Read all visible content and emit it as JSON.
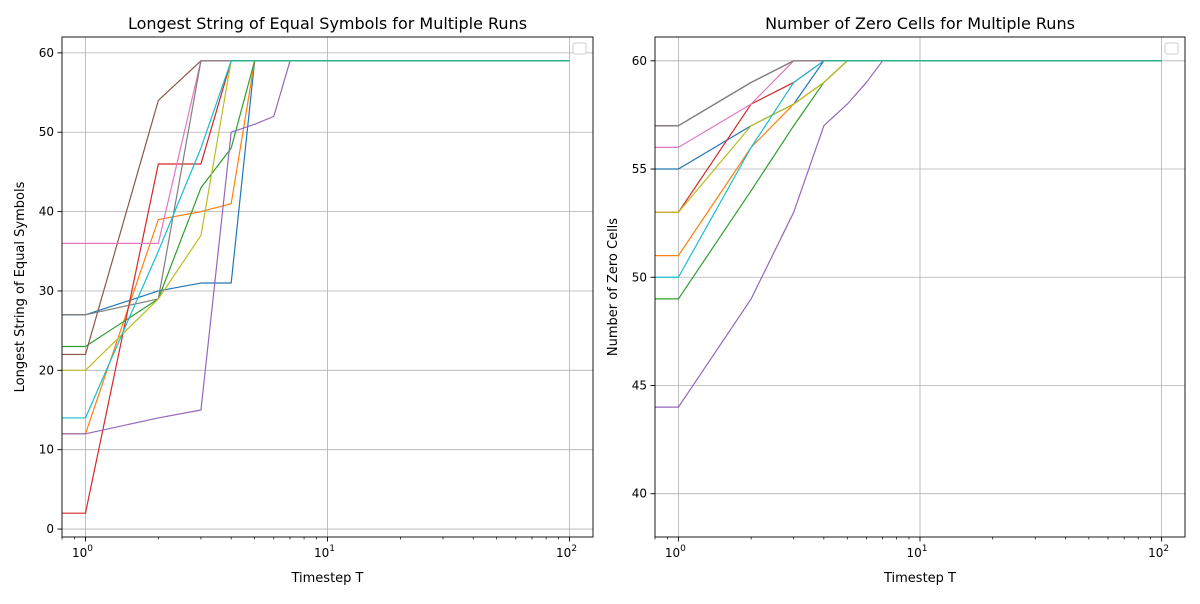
{
  "chart_data": [
    {
      "type": "line",
      "title": "Longest String of Equal Symbols for Multiple Runs",
      "xlabel": "Timestep T",
      "ylabel": "Longest String of Equal Symbols",
      "xscale": "log",
      "xlim": [
        0.8,
        125
      ],
      "ylim": [
        -1,
        62
      ],
      "xticks": [
        {
          "value": 1,
          "base": "10",
          "exp": "0"
        },
        {
          "value": 10,
          "base": "10",
          "exp": "1"
        },
        {
          "value": 100,
          "base": "10",
          "exp": "2"
        }
      ],
      "yticks": [
        0,
        10,
        20,
        30,
        40,
        50,
        60
      ],
      "grid": true,
      "legend": "top-right (empty box)",
      "series": [
        {
          "color": "#1f77b4",
          "x": [
            0.8,
            1,
            2,
            3,
            4,
            5,
            100
          ],
          "y": [
            27,
            27,
            30,
            31,
            31,
            59,
            59
          ]
        },
        {
          "color": "#ff7f0e",
          "x": [
            0.8,
            1,
            2,
            3,
            4,
            5,
            100
          ],
          "y": [
            12,
            12,
            39,
            40,
            41,
            59,
            59
          ]
        },
        {
          "color": "#2ca02c",
          "x": [
            0.8,
            1,
            2,
            3,
            4,
            5,
            100
          ],
          "y": [
            23,
            23,
            29,
            43,
            48,
            59,
            59
          ]
        },
        {
          "color": "#d62728",
          "x": [
            0.8,
            1,
            2,
            3,
            4,
            100
          ],
          "y": [
            2,
            2,
            46,
            46,
            59,
            59
          ]
        },
        {
          "color": "#9467bd",
          "x": [
            0.8,
            1,
            2,
            3,
            4,
            5,
            6,
            7,
            100
          ],
          "y": [
            12,
            12,
            14,
            15,
            50,
            51,
            52,
            59,
            59
          ]
        },
        {
          "color": "#8c564b",
          "x": [
            0.8,
            1,
            2,
            3,
            4,
            100
          ],
          "y": [
            22,
            22,
            54,
            59,
            59,
            59
          ]
        },
        {
          "color": "#e377c2",
          "x": [
            0.8,
            1,
            2,
            3,
            100
          ],
          "y": [
            36,
            36,
            36,
            59,
            59
          ]
        },
        {
          "color": "#7f7f7f",
          "x": [
            0.8,
            1,
            2,
            3,
            4,
            100
          ],
          "y": [
            27,
            27,
            29,
            59,
            59,
            59
          ]
        },
        {
          "color": "#bcbd22",
          "x": [
            0.8,
            1,
            2,
            3,
            4,
            100
          ],
          "y": [
            20,
            20,
            29,
            37,
            59,
            59
          ]
        },
        {
          "color": "#17becf",
          "x": [
            0.8,
            1,
            2,
            3,
            4,
            100
          ],
          "y": [
            14,
            14,
            35,
            48,
            59,
            59
          ]
        },
        {
          "color": "#1fb48a",
          "x": [
            4,
            100
          ],
          "y": [
            59,
            59
          ]
        }
      ]
    },
    {
      "type": "line",
      "title": "Number of Zero Cells for Multiple Runs",
      "xlabel": "Timestep T",
      "ylabel": "Number of Zero Cells",
      "xscale": "log",
      "xlim": [
        0.8,
        125
      ],
      "ylim": [
        38,
        61.1
      ],
      "xticks": [
        {
          "value": 1,
          "base": "10",
          "exp": "0"
        },
        {
          "value": 10,
          "base": "10",
          "exp": "1"
        },
        {
          "value": 100,
          "base": "10",
          "exp": "2"
        }
      ],
      "yticks": [
        40,
        45,
        50,
        55,
        60
      ],
      "grid": true,
      "legend": "top-right (empty box)",
      "series": [
        {
          "color": "#1f77b4",
          "x": [
            0.8,
            1,
            2,
            3,
            4,
            100
          ],
          "y": [
            55,
            55,
            57,
            58,
            60,
            60
          ]
        },
        {
          "color": "#ff7f0e",
          "x": [
            0.8,
            1,
            2,
            3,
            4,
            5,
            100
          ],
          "y": [
            51,
            51,
            56,
            58,
            59,
            60,
            60
          ]
        },
        {
          "color": "#2ca02c",
          "x": [
            0.8,
            1,
            2,
            3,
            4,
            5,
            100
          ],
          "y": [
            49,
            49,
            54,
            57,
            59,
            60,
            60
          ]
        },
        {
          "color": "#d62728",
          "x": [
            0.8,
            1,
            2,
            3,
            4,
            100
          ],
          "y": [
            53,
            53,
            58,
            59,
            60,
            60
          ]
        },
        {
          "color": "#9467bd",
          "x": [
            0.8,
            1,
            2,
            3,
            4,
            5,
            6,
            7,
            100
          ],
          "y": [
            44,
            44,
            49,
            53,
            57,
            58,
            59,
            60,
            60
          ]
        },
        {
          "color": "#8c564b",
          "x": [
            0.8,
            1,
            2,
            3,
            100
          ],
          "y": [
            57,
            57,
            59,
            60,
            60
          ]
        },
        {
          "color": "#e377c2",
          "x": [
            0.8,
            1,
            2,
            3,
            100
          ],
          "y": [
            56,
            56,
            58,
            60,
            60
          ]
        },
        {
          "color": "#7f7f7f",
          "x": [
            0.8,
            1,
            2,
            3,
            100
          ],
          "y": [
            57,
            57,
            59,
            60,
            60
          ]
        },
        {
          "color": "#bcbd22",
          "x": [
            0.8,
            1,
            2,
            3,
            4,
            5,
            100
          ],
          "y": [
            53,
            53,
            57,
            58,
            59,
            60,
            60
          ]
        },
        {
          "color": "#17becf",
          "x": [
            0.8,
            1,
            2,
            3,
            4,
            100
          ],
          "y": [
            50,
            50,
            56,
            59,
            60,
            60
          ]
        },
        {
          "color": "#1fb48a",
          "x": [
            4,
            100
          ],
          "y": [
            60,
            60
          ]
        }
      ]
    }
  ]
}
